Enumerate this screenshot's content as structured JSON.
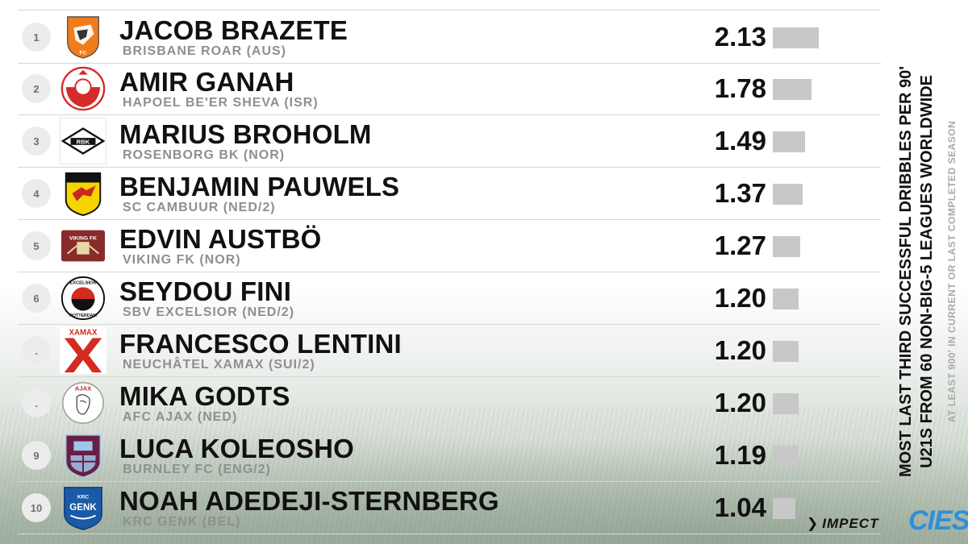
{
  "title": {
    "line1": "MOST LAST THIRD SUCCESSFUL DRIBBLES PER 90'",
    "line2": "U21S FROM 60 NON-BIG-5 LEAGUES WORLDWIDE",
    "note": "AT LEAST 900' IN CURRENT OR LAST COMPLETED SEASON"
  },
  "brands": {
    "impect": "IMPECT",
    "cies": "CIES"
  },
  "colors": {
    "bar": "#c8c8c8",
    "rank_bg": "#ececec",
    "cies": "#2f8fd8"
  },
  "chart_data": {
    "type": "bar",
    "orientation": "horizontal",
    "xlim": [
      0,
      2.13
    ],
    "categories": [
      "JACOB BRAZETE",
      "AMIR GANAH",
      "MARIUS BROHOLM",
      "BENJAMIN PAUWELS",
      "EDVIN AUSTBÖ",
      "SEYDOU FINI",
      "FRANCESCO LENTINI",
      "MIKA GODTS",
      "LUCA KOLEOSHO",
      "NOAH ADEDEJI-STERNBERG"
    ],
    "values": [
      2.13,
      1.78,
      1.49,
      1.37,
      1.27,
      1.2,
      1.2,
      1.2,
      1.19,
      1.04
    ],
    "value_labels": [
      "2.13",
      "1.78",
      "1.49",
      "1.37",
      "1.27",
      "1.20",
      "1.20",
      "1.20",
      "1.19",
      "1.04"
    ],
    "ranks": [
      "1",
      "2",
      "3",
      "4",
      "5",
      "6",
      ".",
      ".",
      "9",
      "10"
    ],
    "clubs": [
      "BRISBANE ROAR (AUS)",
      "HAPOEL BE'ER SHEVA (ISR)",
      "ROSENBORG BK (NOR)",
      "SC CAMBUUR (NED/2)",
      "VIKING FK (NOR)",
      "SBV EXCELSIOR (NED/2)",
      "NEUCHÂTEL XAMAX (SUI/2)",
      "AFC AJAX (NED)",
      "BURNLEY FC (ENG/2)",
      "KRC GENK (BEL)"
    ],
    "logos": [
      "brisbane-roar-crest",
      "hapoel-beer-sheva-crest",
      "rosenborg-crest",
      "sc-cambuur-crest",
      "viking-fk-crest",
      "excelsior-crest",
      "xamax-crest",
      "ajax-crest",
      "burnley-crest",
      "genk-crest"
    ],
    "logo_text": {
      "rosenborg": "RBK",
      "viking": "VIKING FK",
      "excelsior": "EXCELSIOR",
      "excelsior_bottom": "ROTTERDAM",
      "xamax": "XAMAX",
      "ajax": "AJAX",
      "genk": "GENK",
      "genk_top": "KRC"
    }
  }
}
